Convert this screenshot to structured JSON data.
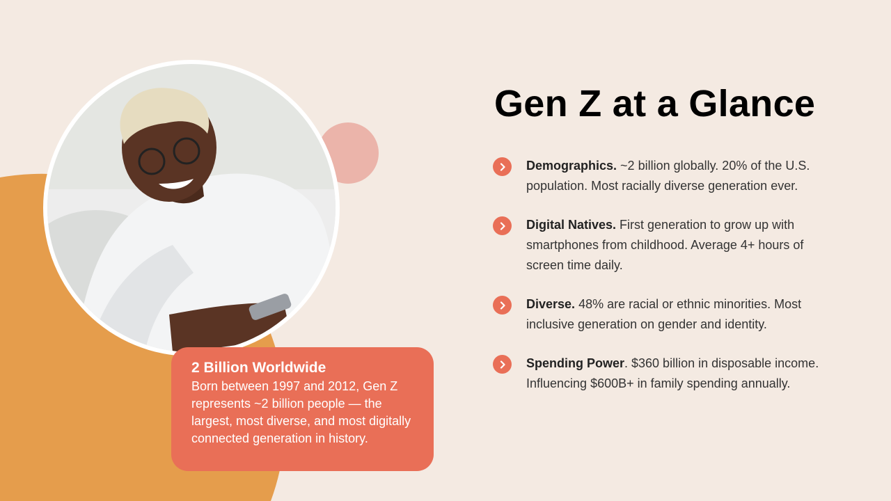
{
  "title": "Gen Z at a Glance",
  "card": {
    "heading": "2 Billion Worldwide",
    "body": "Born between 1997 and 2012, Gen Z represents ~2 billion people — the largest, most diverse, and most digitally connected generation in history."
  },
  "items": [
    {
      "label": "Demographics.",
      "text": " ~2 billion globally. 20% of the U.S. population. Most racially diverse generation ever."
    },
    {
      "label": "Digital Natives.",
      "text": " First generation to grow up with smartphones from childhood. Average 4+ hours of screen time daily."
    },
    {
      "label": "Diverse.",
      "text": " 48% are racial or ethnic minorities. Most inclusive generation on gender and identity."
    },
    {
      "label": "Spending Power",
      "text": ". $360 billion in disposable income. Influencing $600B+ in family spending annually."
    }
  ],
  "icons": {
    "bullet": "chevron-right-icon"
  },
  "colors": {
    "background": "#F4EAE2",
    "accent": "#E96F57",
    "orange": "#E59D4C",
    "pink": "#EBB4AA"
  }
}
